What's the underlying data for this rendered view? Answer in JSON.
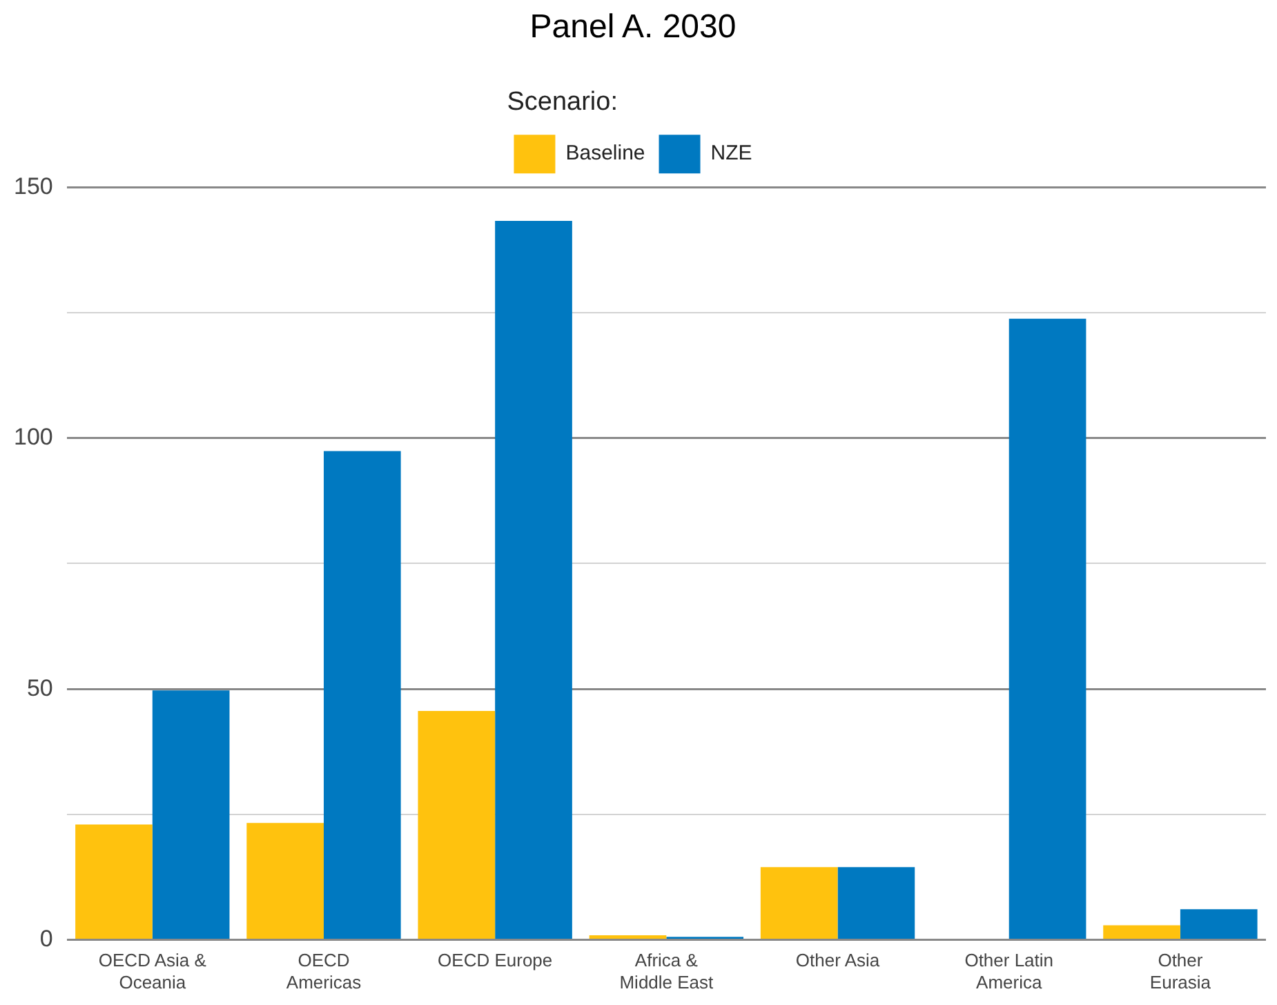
{
  "chart_data": {
    "type": "bar",
    "title": "Panel A. 2030",
    "legend_title": "Scenario:",
    "legend": "top",
    "categories": [
      "OECD Asia & Oceania",
      "OECD Americas",
      "OECD Europe",
      "Africa & Middle East",
      "Other Asia",
      "Other Latin America",
      "Other Eurasia"
    ],
    "series": [
      {
        "name": "Baseline",
        "color": "#ffc20e",
        "values": [
          23,
          23.3,
          45.6,
          0.9,
          14.5,
          0,
          2.9
        ]
      },
      {
        "name": "NZE",
        "color": "#0079c1",
        "values": [
          49.7,
          97.4,
          143.3,
          0.6,
          14.5,
          123.8,
          6.1
        ]
      }
    ],
    "ylim": [
      0,
      150
    ],
    "yticks": [
      0,
      {
        "value": 25,
        "label": null
      },
      50,
      {
        "value": 75,
        "label": null
      },
      100,
      {
        "value": 125,
        "label": null
      },
      150
    ],
    "grid": "y"
  }
}
